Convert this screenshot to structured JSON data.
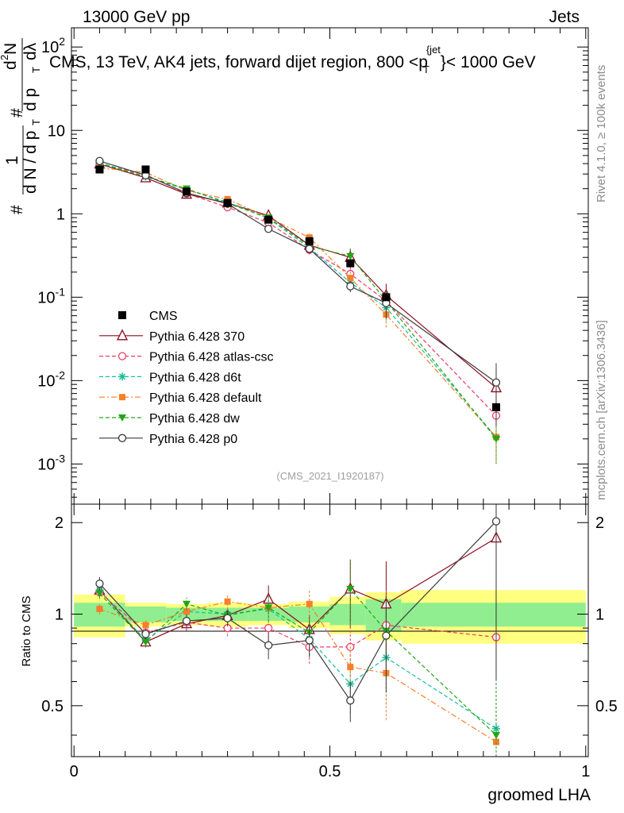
{
  "header": {
    "left": "13000 GeV pp",
    "right": "Jets",
    "rivet": "Rivet 4.1.0, ≥ 100k events",
    "mcplots": "mcplots.cern.ch [arXiv:1306.3436]",
    "analysis_id": "(CMS_2021_I1920187)"
  },
  "chart_data": {
    "type": "line",
    "title": "CMS, 13 TeV, AK4 jets, forward dijet region, 800 <p_T^{jet}< 1000 GeV",
    "title_parts": [
      "CMS, 13 TeV, AK4 jets, forward dijet region, 800 <",
      "p",
      "T",
      "{jet",
      "}< 1000 GeV"
    ],
    "xlabel": "groomed LHA",
    "ylabel_parts": [
      "#",
      "1",
      "d N / d p",
      "T",
      "#",
      "d",
      "2",
      "N",
      "d p",
      "T",
      "dλ"
    ],
    "ratio_ylabel": "Ratio to CMS",
    "xlim": [
      -0.005,
      1.005
    ],
    "ylim": [
      0.00033,
      170
    ],
    "ratio_ylim": [
      0.34,
      2.3
    ],
    "x_ticks": [
      0,
      0.5,
      1
    ],
    "x_tick_labels": [
      "0",
      "0.5",
      "1"
    ],
    "y_ticks": [
      {
        "value": 0.001,
        "base": "10",
        "exp": "-3"
      },
      {
        "value": 0.01,
        "base": "10",
        "exp": "-2"
      },
      {
        "value": 0.1,
        "base": "10",
        "exp": "-1"
      },
      {
        "value": 1,
        "label": "1"
      },
      {
        "value": 10,
        "label": "10"
      },
      {
        "value": 100,
        "base": "10",
        "exp": "2"
      }
    ],
    "ratio_ticks": [
      {
        "value": 0.5,
        "label": "0.5"
      },
      {
        "value": 1,
        "label": "1"
      },
      {
        "value": 2,
        "label": "2"
      }
    ],
    "x": [
      0.05,
      0.14,
      0.22,
      0.3,
      0.38,
      0.46,
      0.54,
      0.61,
      0.825
    ],
    "bin_edges": [
      0.0,
      0.1,
      0.18,
      0.26,
      0.34,
      0.42,
      0.5,
      0.57,
      0.64,
      1.0
    ],
    "data": {
      "name": "CMS",
      "values": [
        3.4,
        3.4,
        1.85,
        1.35,
        0.85,
        0.47,
        0.255,
        0.1,
        0.0048
      ],
      "ratio_band_inner": [
        0.09,
        0.06,
        0.05,
        0.05,
        0.05,
        0.06,
        0.08,
        0.12,
        0.09
      ],
      "ratio_band_outer": [
        0.16,
        0.09,
        0.08,
        0.09,
        0.08,
        0.1,
        0.14,
        0.18,
        0.2
      ]
    },
    "series": [
      {
        "name": "Pythia 6.428 370",
        "color": "#8b0a1a",
        "dash": "",
        "marker": "triangle-open",
        "values": [
          3.95,
          2.7,
          1.72,
          1.35,
          0.95,
          0.42,
          0.3,
          0.105,
          0.0082
        ],
        "ratio": [
          1.2,
          0.81,
          0.93,
          0.99,
          1.12,
          0.89,
          1.21,
          1.08,
          1.78
        ],
        "err": [
          0.04,
          0.04,
          0.05,
          0.06,
          0.11,
          0.12,
          0.25,
          0.38,
          0.65
        ]
      },
      {
        "name": "Pythia 6.428 atlas-csc",
        "color": "#ef3a67",
        "dash": "5,3",
        "marker": "circle-open",
        "values": [
          4.0,
          2.95,
          1.75,
          1.2,
          0.78,
          0.37,
          0.19,
          0.09,
          0.0038
        ],
        "ratio": [
          1.18,
          0.87,
          0.94,
          0.9,
          0.9,
          0.78,
          0.78,
          0.92,
          0.84
        ],
        "err": [
          0.04,
          0.05,
          0.05,
          0.06,
          0.1,
          0.12,
          0.2,
          0.3,
          0.5
        ]
      },
      {
        "name": "Pythia 6.428 d6t",
        "color": "#1abc9c",
        "dash": "5,3",
        "marker": "star",
        "values": [
          4.1,
          2.8,
          1.95,
          1.38,
          0.88,
          0.39,
          0.15,
          0.075,
          0.0021
        ],
        "ratio": [
          1.2,
          0.82,
          1.02,
          1.0,
          1.04,
          0.83,
          0.59,
          0.72,
          0.42
        ],
        "err": [
          0.04,
          0.04,
          0.05,
          0.06,
          0.1,
          0.12,
          0.2,
          0.3,
          0.5
        ]
      },
      {
        "name": "Pythia 6.428 default",
        "color": "#f57f2a",
        "dash": "7,3,2,3",
        "marker": "square",
        "values": [
          3.55,
          3.15,
          1.9,
          1.5,
          0.9,
          0.52,
          0.17,
          0.062,
          0.0021
        ],
        "ratio": [
          1.04,
          0.92,
          1.02,
          1.1,
          1.05,
          1.08,
          0.67,
          0.64,
          0.38
        ],
        "err": [
          0.04,
          0.04,
          0.05,
          0.06,
          0.1,
          0.12,
          0.2,
          0.3,
          0.5
        ]
      },
      {
        "name": "Pythia 6.428 dw",
        "color": "#22a616",
        "dash": "5,3",
        "marker": "triangle-down",
        "values": [
          4.0,
          2.8,
          2.0,
          1.33,
          0.9,
          0.41,
          0.31,
          0.09,
          0.002
        ],
        "ratio": [
          1.17,
          0.81,
          1.08,
          0.99,
          1.05,
          0.87,
          1.21,
          0.88,
          0.4
        ],
        "err": [
          0.04,
          0.04,
          0.05,
          0.06,
          0.1,
          0.12,
          0.25,
          0.3,
          0.5
        ]
      },
      {
        "name": "Pythia 6.428 p0",
        "color": "#3c3c3c",
        "dash": "",
        "marker": "circle-open",
        "values": [
          4.3,
          2.9,
          1.78,
          1.32,
          0.66,
          0.38,
          0.135,
          0.085,
          0.0095
        ],
        "ratio": [
          1.26,
          0.86,
          0.95,
          0.97,
          0.79,
          0.82,
          0.52,
          0.85,
          2.02
        ],
        "err": [
          0.05,
          0.04,
          0.05,
          0.06,
          0.1,
          0.12,
          0.15,
          0.35,
          0.7
        ]
      }
    ]
  }
}
